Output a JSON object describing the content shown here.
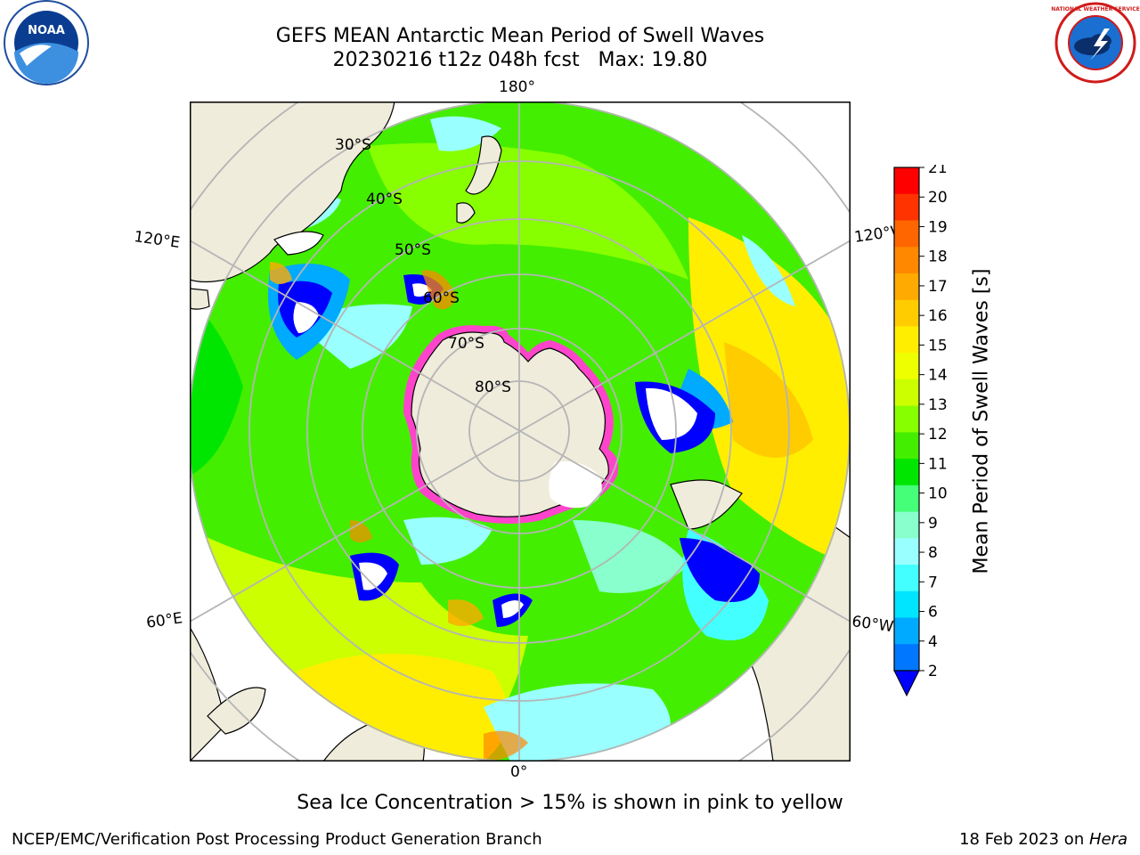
{
  "header": {
    "title_line1": "GEFS MEAN Antarctic Mean Period of Swell Waves",
    "title_line2": "20230216 t12z 048h fcst   Max: 19.80"
  },
  "logos": {
    "left": {
      "icon": "noaa-logo",
      "text": "NOAA"
    },
    "right": {
      "icon": "national-weather-service-logo",
      "text": "NATIONAL WEATHER SERVICE"
    }
  },
  "map": {
    "projection": "south-polar-stereographic",
    "latitude_labels": [
      "30°S",
      "40°S",
      "50°S",
      "60°S",
      "70°S",
      "80°S"
    ],
    "longitude_labels": {
      "top": "180°",
      "bottom": "0°",
      "upper_left": "120°E",
      "lower_left": "60°E",
      "upper_right": "120°W",
      "lower_right": "60°W"
    },
    "colors": {
      "land": "#efecdc",
      "grid": "#b5b5b5",
      "sea_ice": "#ff44cc"
    }
  },
  "colorbar": {
    "label": "Mean Period of Swell Waves [s]",
    "ticks": [
      "21",
      "20",
      "19",
      "18",
      "17",
      "16",
      "15",
      "14",
      "13",
      "12",
      "11",
      "10",
      "9",
      "8",
      "7",
      "6",
      "4",
      "2"
    ],
    "colors_top_to_bottom": [
      "#ff0000",
      "#ff3300",
      "#ff6600",
      "#ff8800",
      "#ffaa00",
      "#ffcc00",
      "#ffee00",
      "#eeff00",
      "#ccff00",
      "#88ff00",
      "#44ee00",
      "#00e600",
      "#44ff77",
      "#88ffcc",
      "#99ffff",
      "#44ffff",
      "#00e5ff",
      "#00aaff",
      "#0077ff"
    ],
    "extend_min_color": "#0000ff"
  },
  "caption": "Sea Ice Concentration > 15% is shown in pink to yellow",
  "footer": {
    "left": "NCEP/EMC/Verification Post Processing Product Generation Branch",
    "right_prefix": "18 Feb 2023 on ",
    "right_host": "Hera"
  }
}
